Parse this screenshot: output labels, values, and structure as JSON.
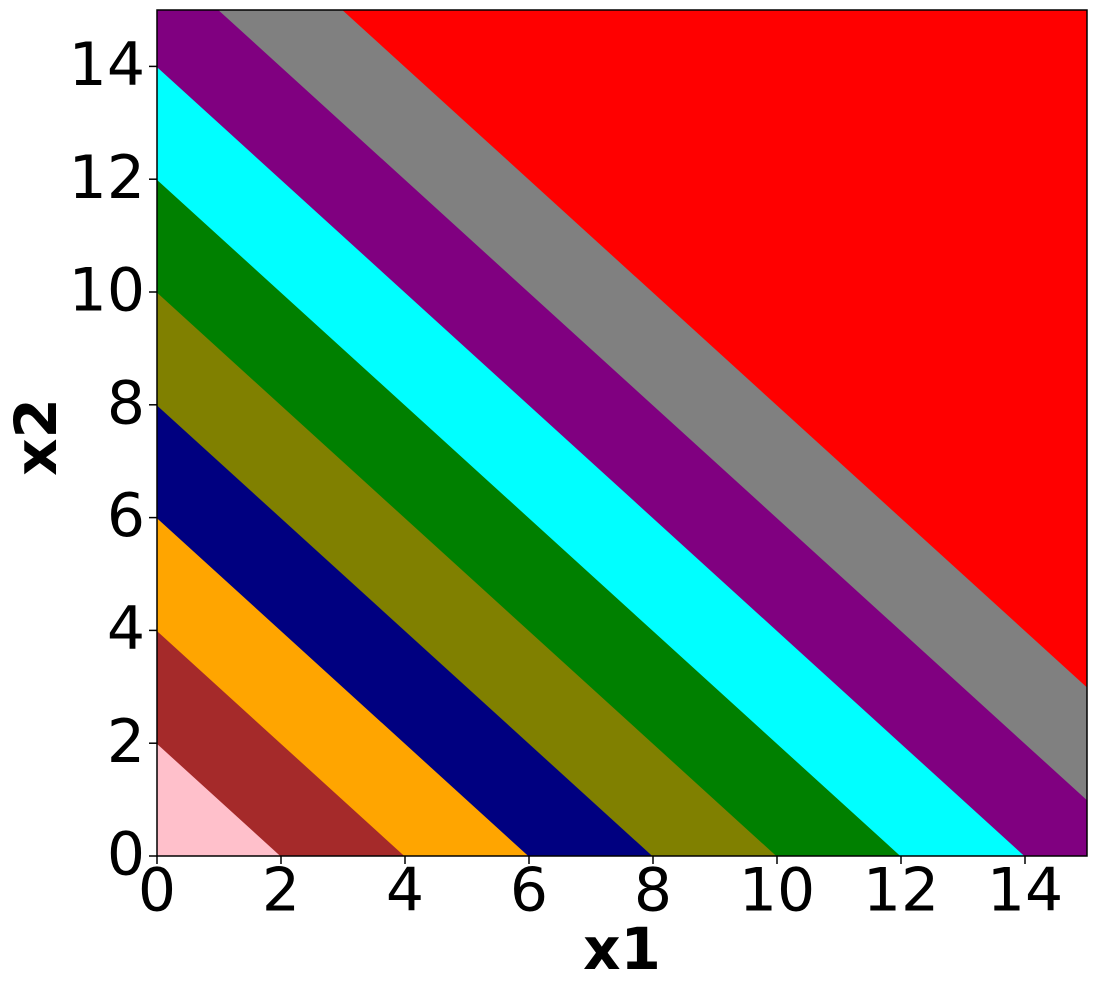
{
  "chart_data": {
    "type": "contourf",
    "xlabel": "x1",
    "ylabel": "x2",
    "bins": [
      0,
      2,
      4,
      6,
      8,
      10,
      12,
      14,
      16,
      18,
      30
    ],
    "colors": [
      "pink",
      "brown",
      "orange",
      "navy",
      "olive",
      "green",
      "cyan",
      "purple",
      "gray",
      "red"
    ],
    "xlim": [
      0,
      15
    ],
    "ylim": [
      0,
      15
    ],
    "xticks": [
      0,
      2,
      4,
      6,
      8,
      10,
      12,
      14
    ],
    "yticks": [
      0,
      2,
      4,
      6,
      8,
      10,
      12,
      14
    ]
  }
}
